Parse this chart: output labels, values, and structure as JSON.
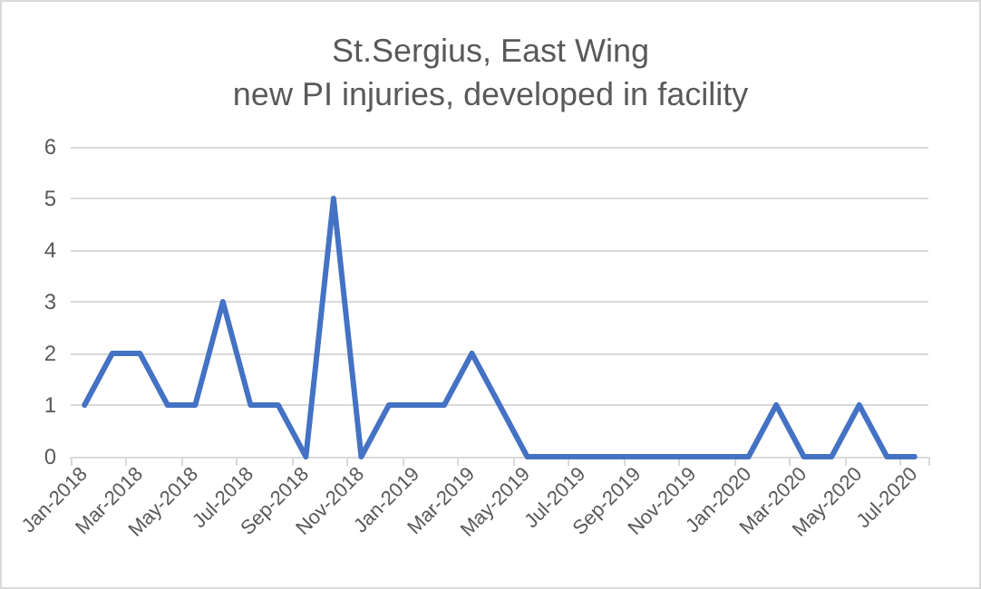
{
  "chart_data": {
    "type": "line",
    "title": "St.Sergius, East Wing\nnew PI injuries, developed in facility",
    "categories": [
      "Jan-2018",
      null,
      "Mar-2018",
      null,
      "May-2018",
      null,
      "Jul-2018",
      null,
      "Sep-2018",
      null,
      "Nov-2018",
      null,
      "Jan-2019",
      null,
      "Mar-2019",
      null,
      "May-2019",
      null,
      "Jul-2019",
      null,
      "Sep-2019",
      null,
      "Nov-2019",
      null,
      "Jan-2020",
      null,
      "Mar-2020",
      null,
      "May-2020",
      null,
      "Jul-2020"
    ],
    "series": [
      {
        "color": "#4472c4",
        "values": [
          1,
          2,
          2,
          1,
          1,
          3,
          1,
          1,
          0,
          5,
          0,
          1,
          1,
          1,
          2,
          1,
          0,
          0,
          0,
          0,
          0,
          0,
          0,
          0,
          0,
          1,
          0,
          0,
          1,
          0,
          0
        ]
      }
    ],
    "ylim": [
      0,
      6
    ],
    "yticks": [
      0,
      1,
      2,
      3,
      4,
      5,
      6
    ],
    "grid": "y",
    "marker": "none",
    "line_style": "solid"
  }
}
